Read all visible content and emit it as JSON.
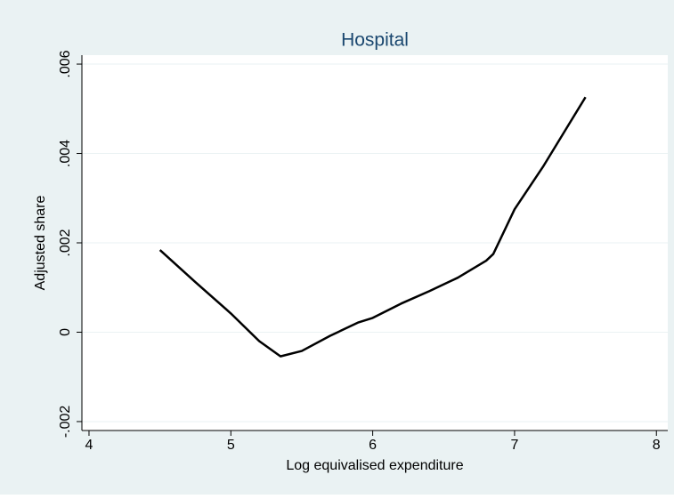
{
  "chart_data": {
    "type": "line",
    "title": "Hospital",
    "x_label": "Log equivalised expenditure",
    "y_label": "Adjusted share",
    "x": [
      4.5,
      4.75,
      5.0,
      5.2,
      5.35,
      5.5,
      5.7,
      5.9,
      6.0,
      6.2,
      6.4,
      6.6,
      6.8,
      6.85,
      7.0,
      7.2,
      7.5
    ],
    "series": [
      {
        "name": "Adjusted share",
        "color": "#000000",
        "values": [
          0.00184,
          0.00112,
          0.00042,
          -0.0002,
          -0.00054,
          -0.00042,
          -8e-05,
          0.00022,
          0.00032,
          0.00064,
          0.00092,
          0.00122,
          0.0016,
          0.00175,
          0.00275,
          0.0037,
          0.00526
        ]
      }
    ],
    "xlim": [
      3.95,
      8.08
    ],
    "ylim": [
      -0.0022,
      0.0062
    ],
    "xticks": [
      4,
      5,
      6,
      7,
      8
    ],
    "yticks": [
      {
        "value": -0.002,
        "label": "-.002"
      },
      0,
      {
        "value": 0.002,
        "label": ".002"
      },
      {
        "value": 0.004,
        "label": ".004"
      },
      {
        "value": 0.006,
        "label": ".006"
      }
    ],
    "grid": true
  }
}
